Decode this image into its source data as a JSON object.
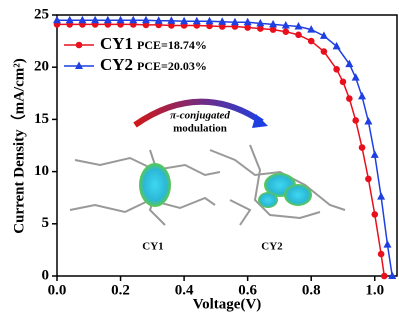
{
  "chart_data": {
    "type": "line",
    "x_label": "Voltage(V)",
    "y_label": "Current Density（mA/cm²)",
    "xlim": [
      0,
      1.07
    ],
    "ylim": [
      0,
      25
    ],
    "xticks": [
      {
        "value": 0,
        "label": "0.0"
      },
      0.2,
      0.4,
      0.6,
      0.8,
      {
        "value": 1,
        "label": "1.0"
      }
    ],
    "yticks": [
      0,
      5,
      10,
      15,
      20,
      25
    ],
    "legend": "upper left",
    "series": [
      {
        "name": "CY1",
        "color": "#e8101c",
        "marker": "circle",
        "x": [
          0,
          0.04,
          0.08,
          0.12,
          0.16,
          0.2,
          0.24,
          0.28,
          0.32,
          0.36,
          0.4,
          0.44,
          0.48,
          0.52,
          0.56,
          0.6,
          0.64,
          0.68,
          0.72,
          0.76,
          0.8,
          0.84,
          0.88,
          0.9,
          0.92,
          0.94,
          0.96,
          0.98,
          1.0,
          1.02,
          1.03
        ],
        "values": [
          24.1,
          24.1,
          24.1,
          24.1,
          24.1,
          24.1,
          24.1,
          24.05,
          24.05,
          24.0,
          24.0,
          24.0,
          23.95,
          23.9,
          23.9,
          23.8,
          23.7,
          23.6,
          23.4,
          23.1,
          22.5,
          21.5,
          19.8,
          18.6,
          17.0,
          14.9,
          12.3,
          9.3,
          5.9,
          2.1,
          0
        ],
        "annotation": "PCE=18.74%"
      },
      {
        "name": "CY2",
        "color": "#1f3fe0",
        "marker": "triangle",
        "x": [
          0,
          0.04,
          0.08,
          0.12,
          0.16,
          0.2,
          0.24,
          0.28,
          0.32,
          0.36,
          0.4,
          0.44,
          0.48,
          0.52,
          0.56,
          0.6,
          0.64,
          0.68,
          0.72,
          0.76,
          0.8,
          0.84,
          0.88,
          0.92,
          0.94,
          0.96,
          0.98,
          1.0,
          1.02,
          1.04,
          1.055
        ],
        "values": [
          24.5,
          24.5,
          24.5,
          24.5,
          24.5,
          24.5,
          24.5,
          24.5,
          24.45,
          24.45,
          24.4,
          24.4,
          24.4,
          24.35,
          24.3,
          24.3,
          24.2,
          24.1,
          24.0,
          23.9,
          23.6,
          23.0,
          22.0,
          20.3,
          19.0,
          17.2,
          14.8,
          11.6,
          7.6,
          3.0,
          0
        ],
        "annotation": "PCE=20.03%"
      }
    ],
    "inset": {
      "arrow_label": [
        "π-conjugated",
        "modulation"
      ],
      "left_label": "CY1",
      "right_label": "CY2"
    }
  }
}
